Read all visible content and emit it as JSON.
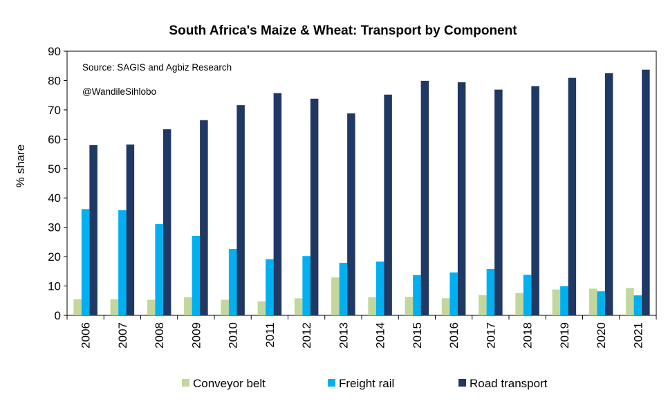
{
  "chart_data": {
    "type": "bar",
    "title": "South Africa's Maize & Wheat: Transport by Component",
    "ylabel": "% share",
    "xlabel": "",
    "ylim": [
      0,
      90
    ],
    "yticks": [
      0,
      10,
      20,
      30,
      40,
      50,
      60,
      70,
      80,
      90
    ],
    "grid": false,
    "legend_position": "bottom",
    "annotations": [
      "Source: SAGIS and Agbiz Research",
      "@WandileSihlobo"
    ],
    "categories": [
      "2006",
      "2007",
      "2008",
      "2009",
      "2010",
      "2011",
      "2012",
      "2013",
      "2014",
      "2015",
      "2016",
      "2017",
      "2018",
      "2019",
      "2020",
      "2021"
    ],
    "series": [
      {
        "name": "Conveyor belt",
        "color": "#c3d69b",
        "values": [
          5.5,
          5.5,
          5.3,
          6.2,
          5.3,
          4.8,
          5.8,
          12.9,
          6.2,
          6.3,
          5.8,
          6.9,
          7.6,
          8.8,
          9.1,
          9.3
        ]
      },
      {
        "name": "Freight rail",
        "color": "#00b0f0",
        "values": [
          36.2,
          35.8,
          31.1,
          27.1,
          22.6,
          19.1,
          20.2,
          17.9,
          18.3,
          13.7,
          14.6,
          15.8,
          13.8,
          9.9,
          8.2,
          6.8
        ]
      },
      {
        "name": "Road transport",
        "color": "#1f3864",
        "values": [
          58.0,
          58.2,
          63.4,
          66.5,
          71.6,
          75.7,
          73.8,
          68.8,
          75.2,
          79.9,
          79.4,
          76.9,
          78.1,
          80.9,
          82.5,
          83.7
        ]
      }
    ]
  }
}
